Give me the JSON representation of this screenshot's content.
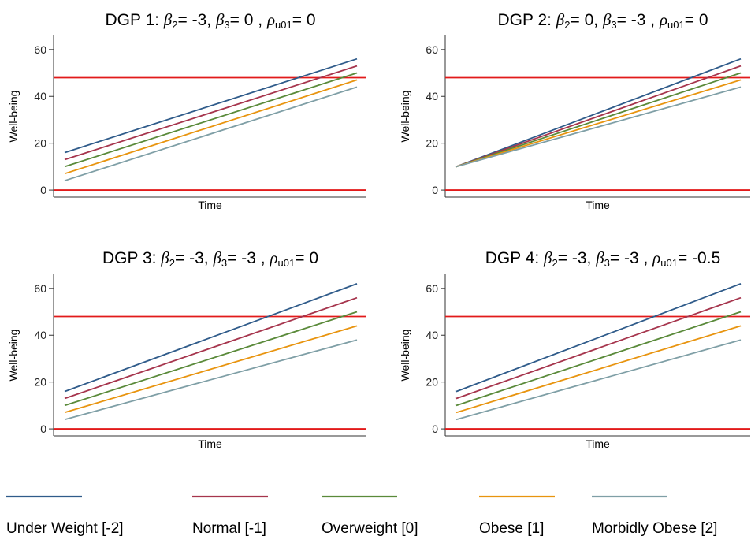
{
  "chart_data": [
    {
      "type": "line",
      "title": {
        "prefix": "DGP 1: ",
        "b2": "= -3, ",
        "b3": "=  0 , ",
        "rho_val": "=  0"
      },
      "xlabel": "Time",
      "ylabel": "Well-being",
      "x": [
        0,
        1
      ],
      "ylim": [
        -3,
        66
      ],
      "yticks": [
        0,
        20,
        40,
        60
      ],
      "grid": false,
      "hlines": [
        {
          "y": 0,
          "color": "#e21a1a"
        },
        {
          "y": 48,
          "color": "#e21a1a"
        }
      ],
      "series": [
        {
          "name": "Under Weight [-2]",
          "color": "#2f5b8a",
          "values": [
            16,
            56
          ]
        },
        {
          "name": "Normal [-1]",
          "color": "#a6354d",
          "values": [
            13,
            53
          ]
        },
        {
          "name": "Overweight [0]",
          "color": "#5a8a3a",
          "values": [
            10,
            50
          ]
        },
        {
          "name": "Obese [1]",
          "color": "#e8940f",
          "values": [
            7,
            47
          ]
        },
        {
          "name": "Morbidly Obese [2]",
          "color": "#7f9fa6",
          "values": [
            4,
            44
          ]
        }
      ]
    },
    {
      "type": "line",
      "title": {
        "prefix": "DGP 2: ",
        "b2": "=  0, ",
        "b3": "= -3 , ",
        "rho_val": "=  0"
      },
      "xlabel": "Time",
      "ylabel": "Well-being",
      "x": [
        0,
        1
      ],
      "ylim": [
        -3,
        66
      ],
      "yticks": [
        0,
        20,
        40,
        60
      ],
      "grid": false,
      "hlines": [
        {
          "y": 0,
          "color": "#e21a1a"
        },
        {
          "y": 48,
          "color": "#e21a1a"
        }
      ],
      "series": [
        {
          "name": "Under Weight [-2]",
          "color": "#2f5b8a",
          "values": [
            10,
            56
          ]
        },
        {
          "name": "Normal [-1]",
          "color": "#a6354d",
          "values": [
            10,
            53
          ]
        },
        {
          "name": "Overweight [0]",
          "color": "#5a8a3a",
          "values": [
            10,
            50
          ]
        },
        {
          "name": "Obese [1]",
          "color": "#e8940f",
          "values": [
            10,
            47
          ]
        },
        {
          "name": "Morbidly Obese [2]",
          "color": "#7f9fa6",
          "values": [
            10,
            44
          ]
        }
      ]
    },
    {
      "type": "line",
      "title": {
        "prefix": "DGP 3: ",
        "b2": "= -3, ",
        "b3": "= -3 , ",
        "rho_val": "=  0"
      },
      "xlabel": "Time",
      "ylabel": "Well-being",
      "x": [
        0,
        1
      ],
      "ylim": [
        -3,
        66
      ],
      "yticks": [
        0,
        20,
        40,
        60
      ],
      "grid": false,
      "hlines": [
        {
          "y": 0,
          "color": "#e21a1a"
        },
        {
          "y": 48,
          "color": "#e21a1a"
        }
      ],
      "series": [
        {
          "name": "Under Weight [-2]",
          "color": "#2f5b8a",
          "values": [
            16,
            62
          ]
        },
        {
          "name": "Normal [-1]",
          "color": "#a6354d",
          "values": [
            13,
            56
          ]
        },
        {
          "name": "Overweight [0]",
          "color": "#5a8a3a",
          "values": [
            10,
            50
          ]
        },
        {
          "name": "Obese [1]",
          "color": "#e8940f",
          "values": [
            7,
            44
          ]
        },
        {
          "name": "Morbidly Obese [2]",
          "color": "#7f9fa6",
          "values": [
            4,
            38
          ]
        }
      ]
    },
    {
      "type": "line",
      "title": {
        "prefix": "DGP 4: ",
        "b2": "= -3, ",
        "b3": "= -3 , ",
        "rho_val": "= -0.5"
      },
      "xlabel": "Time",
      "ylabel": "Well-being",
      "x": [
        0,
        1
      ],
      "ylim": [
        -3,
        66
      ],
      "yticks": [
        0,
        20,
        40,
        60
      ],
      "grid": false,
      "hlines": [
        {
          "y": 0,
          "color": "#e21a1a"
        },
        {
          "y": 48,
          "color": "#e21a1a"
        }
      ],
      "series": [
        {
          "name": "Under Weight [-2]",
          "color": "#2f5b8a",
          "values": [
            16,
            62
          ]
        },
        {
          "name": "Normal [-1]",
          "color": "#a6354d",
          "values": [
            13,
            56
          ]
        },
        {
          "name": "Overweight [0]",
          "color": "#5a8a3a",
          "values": [
            10,
            50
          ]
        },
        {
          "name": "Obese [1]",
          "color": "#e8940f",
          "values": [
            7,
            44
          ]
        },
        {
          "name": "Morbidly Obese [2]",
          "color": "#7f9fa6",
          "values": [
            4,
            38
          ]
        }
      ]
    }
  ],
  "legend": {
    "position": "bottom",
    "items": [
      {
        "label": "Under Weight [-2]",
        "color": "#2f5b8a"
      },
      {
        "label": "Normal [-1]",
        "color": "#a6354d"
      },
      {
        "label": "Overweight [0]",
        "color": "#5a8a3a"
      },
      {
        "label": "Obese [1]",
        "color": "#e8940f"
      },
      {
        "label": "Morbidly Obese [2]",
        "color": "#7f9fa6"
      }
    ]
  },
  "symbols": {
    "beta": "β",
    "rho": "ρ",
    "sub2": "2",
    "sub3": "3",
    "sub_u01": "u01"
  }
}
